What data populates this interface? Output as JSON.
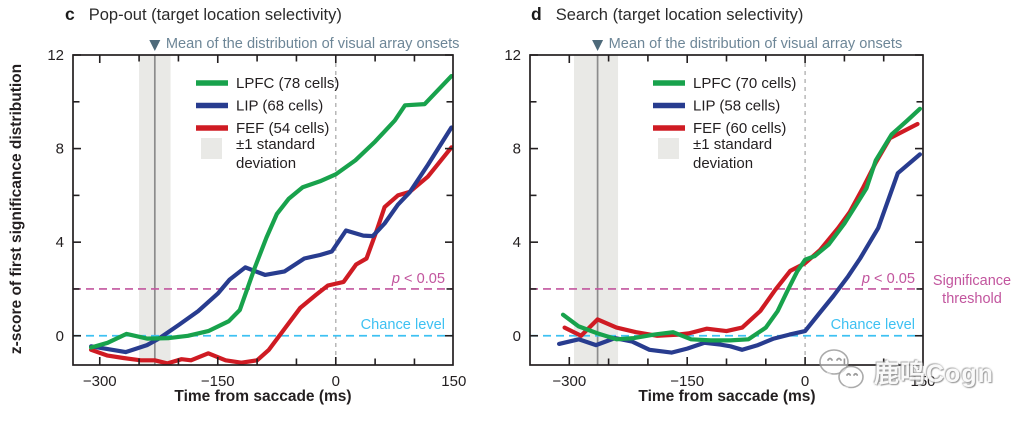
{
  "figure": {
    "background": "#ffffff",
    "axis_color": "#231f20",
    "annotation_color": "#6d8697",
    "arrow_color": "#4e6a7a",
    "significance_color": "#c2559e",
    "chance_color": "#3ec1f2",
    "band_color": "#e9e9e6",
    "mean_line_color": "#8c8c8c",
    "zero_dash_color": "#b3b3b3"
  },
  "watermark": {
    "icon": "wechat-chat-bubbles-icon",
    "text": "鹿鸣Cogn"
  },
  "chart_data": [
    {
      "type": "line",
      "panel_letter": "c",
      "title": "Pop-out (target location selectivity)",
      "xlabel": "Time from saccade (ms)",
      "ylabel": "z-score of first significance distribution",
      "xlim": [
        -334,
        149
      ],
      "ylim": [
        -1.25,
        12
      ],
      "xticks": [
        -300,
        -150,
        0,
        150
      ],
      "xtick_labels": [
        "−300",
        "−150",
        "0",
        "150"
      ],
      "yticks": [
        0,
        4,
        8,
        12
      ],
      "ytick_labels": [
        "0",
        "4",
        "8",
        "12"
      ],
      "x_minor_step": 50,
      "y_minor_step": 2,
      "grid": false,
      "legend_position": "upper-left-inside",
      "annotation": "Mean of the distribution of visual array onsets",
      "mean_line_x": -230,
      "std_band_x": [
        -250,
        -210
      ],
      "std_band_label": [
        "±1 standard",
        "deviation"
      ],
      "saccade_line_x": 0,
      "significance_line": {
        "y": 2,
        "label": "p < 0.05"
      },
      "chance_line": {
        "y": 0,
        "label": "Chance level"
      },
      "series": [
        {
          "name": "LPFC (78 cells)",
          "color": "#18a24c",
          "points": [
            [
              -311,
              -0.5
            ],
            [
              -290,
              -0.3
            ],
            [
              -266,
              0.08
            ],
            [
              -240,
              -0.12
            ],
            [
              -212,
              -0.1
            ],
            [
              -188,
              0.0
            ],
            [
              -162,
              0.2
            ],
            [
              -136,
              0.62
            ],
            [
              -122,
              1.1
            ],
            [
              -103,
              2.9
            ],
            [
              -88,
              4.2
            ],
            [
              -75,
              5.2
            ],
            [
              -60,
              5.85
            ],
            [
              -42,
              6.35
            ],
            [
              -20,
              6.6
            ],
            [
              0,
              6.9
            ],
            [
              25,
              7.5
            ],
            [
              50,
              8.3
            ],
            [
              75,
              9.2
            ],
            [
              88,
              9.85
            ],
            [
              113,
              9.9
            ],
            [
              147,
              11.1
            ]
          ]
        },
        {
          "name": "LIP (68 cells)",
          "color": "#283c8f",
          "points": [
            [
              -311,
              -0.45
            ],
            [
              -267,
              -0.7
            ],
            [
              -240,
              -0.4
            ],
            [
              -225,
              -0.12
            ],
            [
              -200,
              0.45
            ],
            [
              -175,
              1.05
            ],
            [
              -150,
              1.8
            ],
            [
              -135,
              2.4
            ],
            [
              -115,
              2.92
            ],
            [
              -90,
              2.6
            ],
            [
              -65,
              2.75
            ],
            [
              -40,
              3.3
            ],
            [
              -20,
              3.45
            ],
            [
              -5,
              3.6
            ],
            [
              13,
              4.5
            ],
            [
              35,
              4.28
            ],
            [
              47,
              4.26
            ],
            [
              62,
              4.8
            ],
            [
              79,
              5.6
            ],
            [
              94,
              6.13
            ],
            [
              117,
              7.3
            ],
            [
              147,
              8.9
            ]
          ]
        },
        {
          "name": "FEF (54 cells)",
          "color": "#cf1b23",
          "points": [
            [
              -311,
              -0.6
            ],
            [
              -290,
              -0.85
            ],
            [
              -270,
              -0.95
            ],
            [
              -248,
              -1.05
            ],
            [
              -230,
              -1.05
            ],
            [
              -214,
              -1.18
            ],
            [
              -196,
              -1.0
            ],
            [
              -184,
              -1.05
            ],
            [
              -162,
              -0.75
            ],
            [
              -140,
              -1.05
            ],
            [
              -120,
              -1.15
            ],
            [
              -100,
              -1.05
            ],
            [
              -85,
              -0.6
            ],
            [
              -65,
              0.3
            ],
            [
              -45,
              1.2
            ],
            [
              -25,
              1.75
            ],
            [
              -10,
              2.15
            ],
            [
              10,
              2.3
            ],
            [
              26,
              3.05
            ],
            [
              39,
              3.3
            ],
            [
              52,
              4.5
            ],
            [
              62,
              5.5
            ],
            [
              79,
              6.0
            ],
            [
              94,
              6.15
            ],
            [
              117,
              6.8
            ],
            [
              147,
              8.05
            ]
          ]
        }
      ]
    },
    {
      "type": "line",
      "panel_letter": "d",
      "title": "Search (target location selectivity)",
      "xlabel": "Time from saccade (ms)",
      "ylabel": "z-score of first significance distribution",
      "xlim": [
        -350,
        150
      ],
      "ylim": [
        -1.25,
        12
      ],
      "xticks": [
        -300,
        -150,
        0,
        150
      ],
      "xtick_labels": [
        "−300",
        "−150",
        "0",
        "150"
      ],
      "yticks": [
        0,
        4,
        8,
        12
      ],
      "ytick_labels": [
        "0",
        "4",
        "8",
        "12"
      ],
      "x_minor_step": 50,
      "y_minor_step": 2,
      "grid": false,
      "legend_position": "upper-left-inside",
      "annotation": "Mean of the distribution of visual array onsets",
      "mean_line_x": -264,
      "std_band_x": [
        -294,
        -238
      ],
      "std_band_label": [
        "±1 standard",
        "deviation"
      ],
      "saccade_line_x": 0,
      "significance_line": {
        "y": 2,
        "label": "p < 0.05"
      },
      "chance_line": {
        "y": 0,
        "label": "Chance level"
      },
      "threshold_label": [
        "Significance",
        "threshold"
      ],
      "series": [
        {
          "name": "LPFC (70 cells)",
          "color": "#18a24c",
          "points": [
            [
              -308,
              0.9
            ],
            [
              -288,
              0.4
            ],
            [
              -264,
              0.1
            ],
            [
              -240,
              -0.15
            ],
            [
              -218,
              -0.1
            ],
            [
              -192,
              0.05
            ],
            [
              -168,
              0.15
            ],
            [
              -145,
              -0.15
            ],
            [
              -120,
              -0.2
            ],
            [
              -95,
              -0.2
            ],
            [
              -72,
              -0.15
            ],
            [
              -50,
              0.35
            ],
            [
              -35,
              1.05
            ],
            [
              -22,
              1.95
            ],
            [
              -10,
              2.75
            ],
            [
              0,
              3.25
            ],
            [
              12,
              3.4
            ],
            [
              30,
              3.9
            ],
            [
              50,
              4.8
            ],
            [
              65,
              5.6
            ],
            [
              78,
              6.3
            ],
            [
              90,
              7.5
            ],
            [
              110,
              8.6
            ],
            [
              130,
              9.2
            ],
            [
              146,
              9.7
            ]
          ]
        },
        {
          "name": "LIP (58 cells)",
          "color": "#283c8f",
          "points": [
            [
              -313,
              -0.35
            ],
            [
              -288,
              -0.15
            ],
            [
              -266,
              -0.4
            ],
            [
              -242,
              -0.1
            ],
            [
              -220,
              -0.25
            ],
            [
              -198,
              -0.6
            ],
            [
              -170,
              -0.72
            ],
            [
              -150,
              -0.55
            ],
            [
              -128,
              -0.3
            ],
            [
              -108,
              -0.38
            ],
            [
              -95,
              -0.45
            ],
            [
              -80,
              -0.6
            ],
            [
              -60,
              -0.4
            ],
            [
              -40,
              -0.12
            ],
            [
              -20,
              0.05
            ],
            [
              0,
              0.2
            ],
            [
              18,
              0.95
            ],
            [
              36,
              1.7
            ],
            [
              55,
              2.55
            ],
            [
              70,
              3.3
            ],
            [
              93,
              4.6
            ],
            [
              118,
              6.95
            ],
            [
              146,
              7.75
            ]
          ]
        },
        {
          "name": "FEF (60 cells)",
          "color": "#cf1b23",
          "points": [
            [
              -306,
              0.35
            ],
            [
              -285,
              0.0
            ],
            [
              -264,
              0.7
            ],
            [
              -240,
              0.35
            ],
            [
              -215,
              0.15
            ],
            [
              -188,
              0.0
            ],
            [
              -162,
              0.05
            ],
            [
              -148,
              0.1
            ],
            [
              -125,
              0.3
            ],
            [
              -112,
              0.25
            ],
            [
              -100,
              0.2
            ],
            [
              -80,
              0.35
            ],
            [
              -57,
              1.06
            ],
            [
              -38,
              1.96
            ],
            [
              -19,
              2.77
            ],
            [
              0,
              3.1
            ],
            [
              19,
              3.66
            ],
            [
              42,
              4.6
            ],
            [
              57,
              5.3
            ],
            [
              74,
              6.35
            ],
            [
              90,
              7.4
            ],
            [
              108,
              8.45
            ],
            [
              143,
              9.05
            ]
          ]
        }
      ]
    }
  ]
}
